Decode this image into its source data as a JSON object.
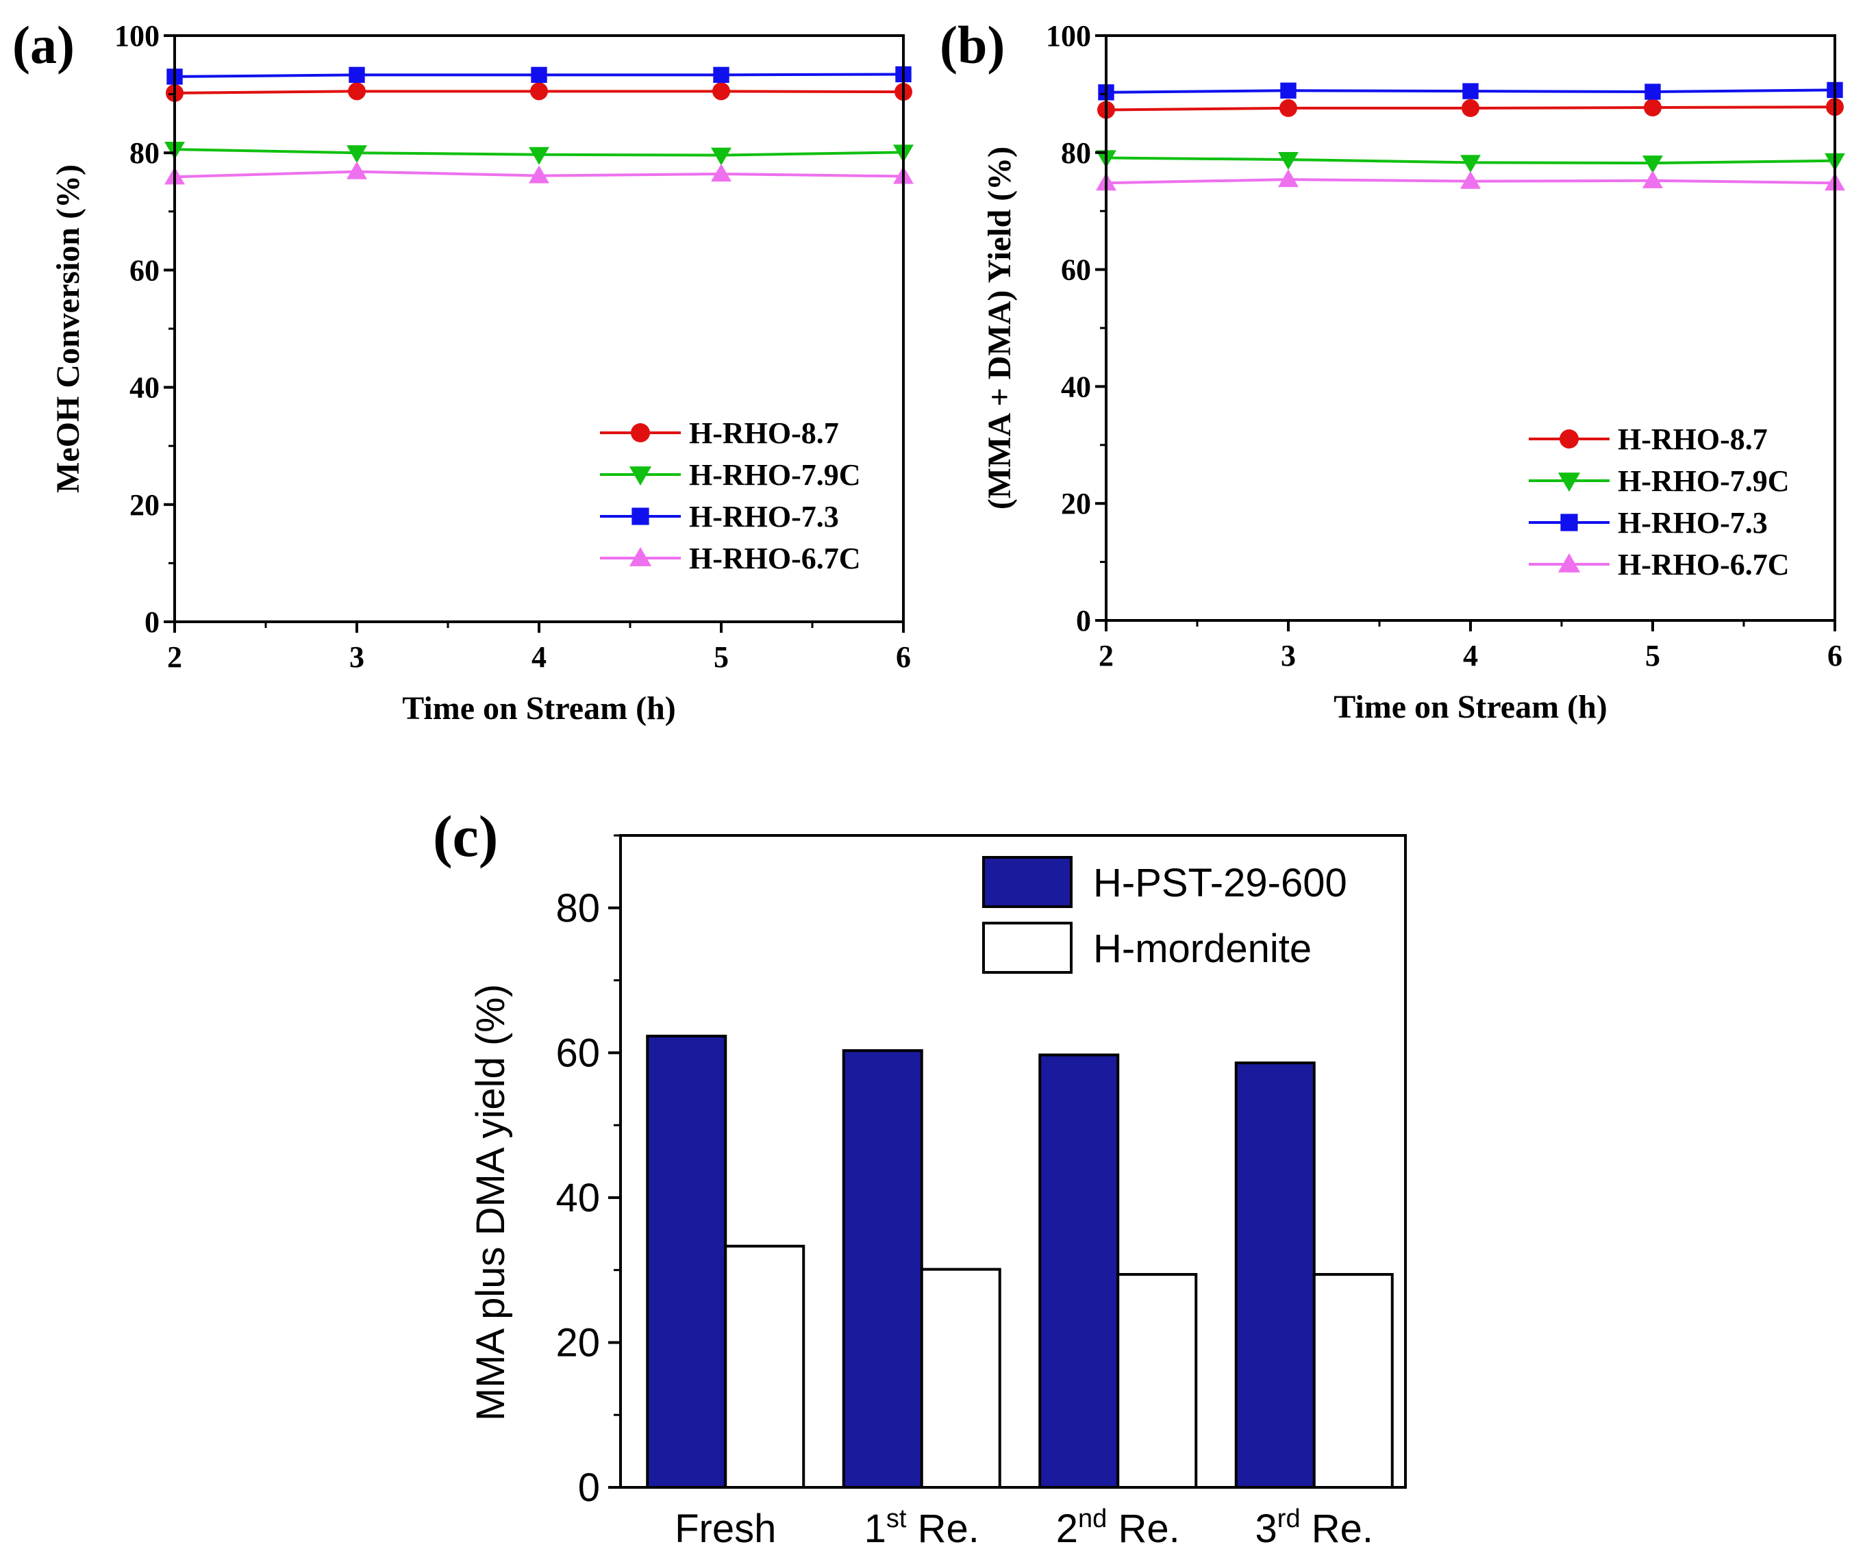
{
  "chart_data": [
    {
      "type": "line",
      "panel_label": "(a)",
      "xlabel": "Time on Stream (h)",
      "ylabel": "MeOH Conversion (%)",
      "xlim": [
        2,
        6
      ],
      "ylim": [
        0,
        100
      ],
      "x": [
        2,
        3,
        4,
        5,
        6
      ],
      "xticks": [
        "2",
        "3",
        "4",
        "5",
        "6"
      ],
      "yticks": [
        "0",
        "20",
        "40",
        "60",
        "80",
        "100"
      ],
      "grid": false,
      "legend_position": "center-right",
      "series": [
        {
          "name": "H-RHO-8.7",
          "marker": "circle",
          "color": "#e01010",
          "values": [
            90.2,
            90.5,
            90.5,
            90.5,
            90.4
          ]
        },
        {
          "name": "H-RHO-7.9C",
          "marker": "triangle-down",
          "color": "#10c010",
          "values": [
            80.6,
            80.0,
            79.7,
            79.6,
            80.1
          ]
        },
        {
          "name": "H-RHO-7.3",
          "marker": "square",
          "color": "#1010ee",
          "values": [
            93.0,
            93.3,
            93.3,
            93.3,
            93.4
          ]
        },
        {
          "name": "H-RHO-6.7C",
          "marker": "triangle-up",
          "color": "#ee70ee",
          "values": [
            75.9,
            76.8,
            76.1,
            76.4,
            76.0
          ]
        }
      ]
    },
    {
      "type": "line",
      "panel_label": "(b)",
      "xlabel": "Time on Stream (h)",
      "ylabel": "(MMA + DMA) Yield (%)",
      "xlim": [
        2,
        6
      ],
      "ylim": [
        0,
        100
      ],
      "x": [
        2,
        3,
        4,
        5,
        6
      ],
      "xticks": [
        "2",
        "3",
        "4",
        "5",
        "6"
      ],
      "yticks": [
        "0",
        "20",
        "40",
        "60",
        "80",
        "100"
      ],
      "grid": false,
      "legend_position": "center-right",
      "series": [
        {
          "name": "H-RHO-8.7",
          "marker": "circle",
          "color": "#e01010",
          "values": [
            87.3,
            87.6,
            87.6,
            87.7,
            87.8
          ]
        },
        {
          "name": "H-RHO-7.9C",
          "marker": "triangle-down",
          "color": "#10c010",
          "values": [
            79.1,
            78.8,
            78.3,
            78.2,
            78.6
          ]
        },
        {
          "name": "H-RHO-7.3",
          "marker": "square",
          "color": "#1010ee",
          "values": [
            90.3,
            90.6,
            90.5,
            90.4,
            90.7
          ]
        },
        {
          "name": "H-RHO-6.7C",
          "marker": "triangle-up",
          "color": "#ee70ee",
          "values": [
            74.8,
            75.4,
            75.1,
            75.2,
            74.8
          ]
        }
      ]
    },
    {
      "type": "bar",
      "panel_label": "(c)",
      "xlabel": "",
      "ylabel": "MMA plus DMA yield (%)",
      "ylim": [
        0,
        90
      ],
      "yticks": [
        "0",
        "20",
        "40",
        "60",
        "80"
      ],
      "grid": false,
      "legend_position": "top-right",
      "categories": [
        {
          "base": "Fresh",
          "sup": "",
          "suffix": ""
        },
        {
          "base": "1",
          "sup": "st",
          "suffix": " Re."
        },
        {
          "base": "2",
          "sup": "nd",
          "suffix": " Re."
        },
        {
          "base": "3",
          "sup": "rd",
          "suffix": " Re."
        }
      ],
      "series": [
        {
          "name": "H-PST-29-600",
          "fill": "#1a1a9c",
          "values": [
            62.3,
            60.3,
            59.7,
            58.6
          ]
        },
        {
          "name": "H-mordenite",
          "fill": "#ffffff",
          "values": [
            33.3,
            30.1,
            29.4,
            29.4
          ]
        }
      ]
    }
  ]
}
